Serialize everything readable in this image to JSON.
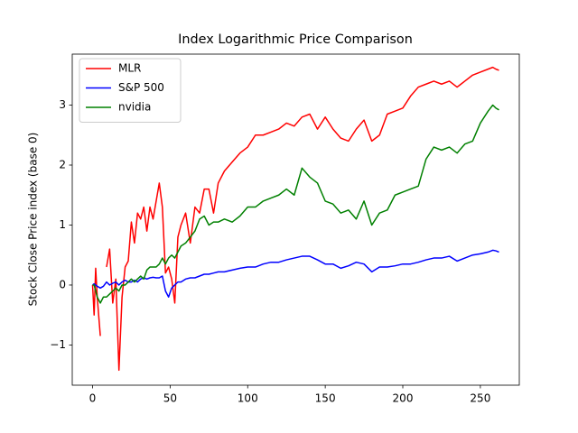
{
  "chart_data": {
    "type": "line",
    "title": "Index Logarithmic Price Comparison",
    "y_label": "Stock Close Price index (base 0)",
    "legend": "upper left",
    "xlim": [
      -13.1,
      275.1
    ],
    "ylim": [
      -1.67,
      3.85
    ],
    "xticks": [
      0,
      50,
      100,
      150,
      200,
      250
    ],
    "yticks": [
      {
        "value": -1,
        "label": "−1"
      },
      0,
      1,
      2,
      3
    ],
    "x": [
      0,
      1,
      2,
      3,
      5,
      7,
      9,
      11,
      13,
      15,
      17,
      19,
      21,
      23,
      25,
      27,
      29,
      31,
      33,
      35,
      37,
      39,
      41,
      43,
      45,
      47,
      49,
      51,
      53,
      55,
      57,
      60,
      63,
      66,
      69,
      72,
      75,
      78,
      81,
      85,
      90,
      95,
      100,
      105,
      110,
      115,
      120,
      125,
      130,
      135,
      140,
      145,
      150,
      155,
      160,
      165,
      170,
      175,
      180,
      185,
      190,
      195,
      200,
      205,
      210,
      215,
      220,
      225,
      230,
      235,
      240,
      245,
      250,
      255,
      258,
      260,
      262
    ],
    "series": [
      {
        "name": "MLR",
        "color": "#ff0000",
        "values": [
          0,
          -0.5,
          0.28,
          -0.2,
          -0.85,
          null,
          0.3,
          0.6,
          -0.3,
          0.1,
          -1.42,
          -0.2,
          0.3,
          0.4,
          1.05,
          0.7,
          1.2,
          1.1,
          1.3,
          0.9,
          1.3,
          1.1,
          1.4,
          1.7,
          1.3,
          0.2,
          0.3,
          0.1,
          -0.3,
          0.8,
          1.0,
          1.2,
          0.7,
          1.3,
          1.2,
          1.6,
          1.6,
          1.2,
          1.7,
          1.9,
          2.05,
          2.2,
          2.3,
          2.5,
          2.5,
          2.55,
          2.6,
          2.7,
          2.65,
          2.8,
          2.85,
          2.6,
          2.8,
          2.6,
          2.45,
          2.4,
          2.6,
          2.75,
          2.4,
          2.5,
          2.85,
          2.9,
          2.95,
          3.15,
          3.3,
          3.35,
          3.4,
          3.35,
          3.4,
          3.3,
          3.4,
          3.5,
          3.55,
          3.6,
          3.63,
          3.6,
          3.58
        ]
      },
      {
        "name": "S&P 500",
        "color": "#0000ff",
        "values": [
          0,
          0.02,
          0,
          -0.02,
          -0.05,
          -0.02,
          0.05,
          0,
          0.03,
          0.05,
          0,
          0.05,
          0.08,
          0.05,
          0.05,
          0.08,
          0.05,
          0.1,
          0.12,
          0.1,
          0.12,
          0.13,
          0.12,
          0.12,
          0.15,
          -0.1,
          -0.2,
          -0.05,
          0,
          0.05,
          0.05,
          0.1,
          0.12,
          0.12,
          0.15,
          0.18,
          0.18,
          0.2,
          0.22,
          0.22,
          0.25,
          0.28,
          0.3,
          0.3,
          0.35,
          0.38,
          0.38,
          0.42,
          0.45,
          0.48,
          0.48,
          0.42,
          0.35,
          0.35,
          0.28,
          0.32,
          0.38,
          0.35,
          0.22,
          0.3,
          0.3,
          0.32,
          0.35,
          0.35,
          0.38,
          0.42,
          0.45,
          0.45,
          0.48,
          0.4,
          0.45,
          0.5,
          0.52,
          0.55,
          0.58,
          0.57,
          0.55
        ]
      },
      {
        "name": "nvidia",
        "color": "#008000",
        "values": [
          0,
          0,
          -0.1,
          -0.2,
          -0.3,
          -0.2,
          -0.2,
          -0.15,
          -0.1,
          -0.05,
          -0.1,
          0,
          0,
          0.05,
          0.1,
          0.05,
          0.1,
          0.15,
          0.1,
          0.25,
          0.3,
          0.3,
          0.3,
          0.35,
          0.45,
          0.35,
          0.45,
          0.5,
          0.45,
          0.55,
          0.65,
          0.7,
          0.8,
          0.9,
          1.1,
          1.15,
          1.0,
          1.05,
          1.05,
          1.1,
          1.05,
          1.15,
          1.3,
          1.3,
          1.4,
          1.45,
          1.5,
          1.6,
          1.5,
          1.95,
          1.8,
          1.7,
          1.4,
          1.35,
          1.2,
          1.25,
          1.1,
          1.4,
          1.0,
          1.2,
          1.25,
          1.5,
          1.55,
          1.6,
          1.65,
          2.1,
          2.3,
          2.25,
          2.3,
          2.2,
          2.35,
          2.4,
          2.7,
          2.9,
          3.0,
          2.95,
          2.92
        ]
      }
    ]
  }
}
